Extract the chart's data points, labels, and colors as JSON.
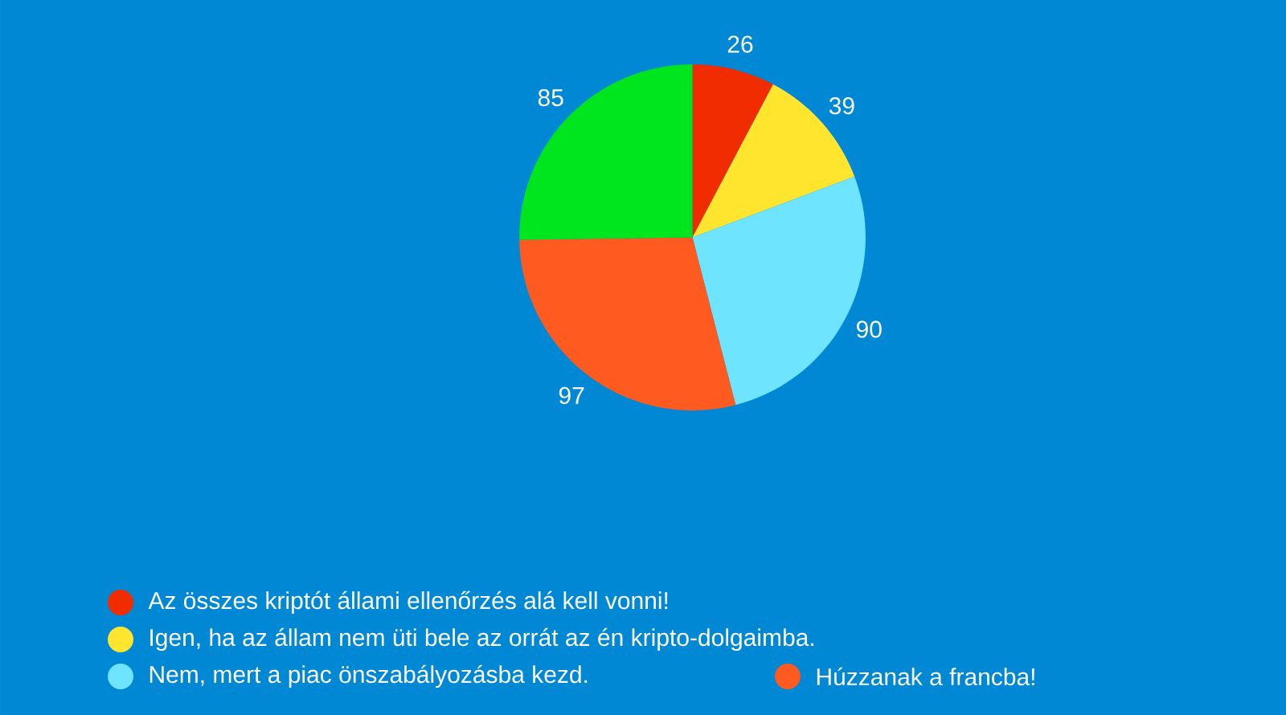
{
  "chart_data": {
    "type": "pie",
    "categories": [
      "Az összes kriptót állami ellenőrzés alá kell vonni!",
      "Igen, ha az állam nem üti bele az orrát az én kripto-dolgaimba.",
      "Nem, mert a piac önszabályozásba kezd.",
      "Húzzanak a francba!",
      null
    ],
    "values": [
      26,
      39,
      90,
      97,
      85
    ],
    "colors": [
      "#f02c00",
      "#ffe52e",
      "#6ee4ff",
      "#ff5a1f",
      "#00e61e"
    ],
    "data_labels": true,
    "legend": "bottom"
  }
}
